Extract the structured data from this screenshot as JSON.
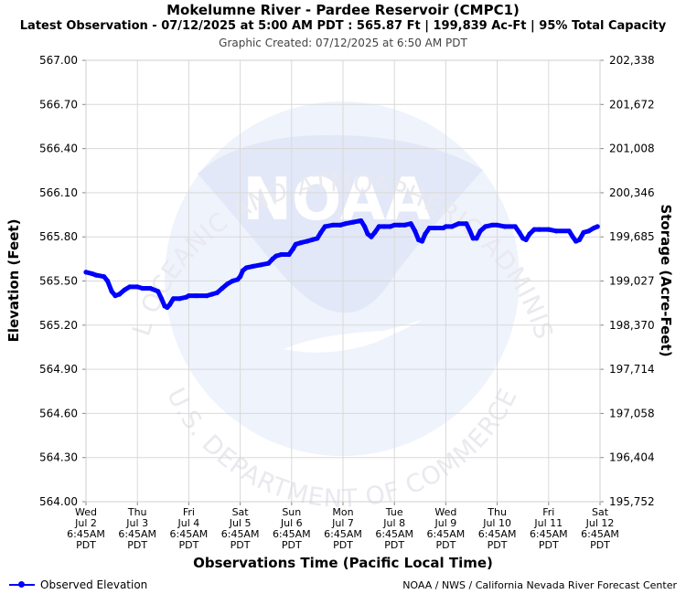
{
  "header": {
    "title": "Mokelumne River - Pardee Reservoir (CMPC1)",
    "subtitle": "Latest Observation - 07/12/2025 at 5:00 AM PDT : 565.87 Ft | 199,839 Ac-Ft | 95% Total Capacity",
    "created": "Graphic Created: 07/12/2025 at 6:50 AM PDT"
  },
  "footer": {
    "legend_label": "Observed Elevation",
    "credit": "NOAA / NWS / California Nevada River Forecast Center"
  },
  "watermark": {
    "logo_text": "NOAA",
    "ring_top": "NATIONAL OCEANIC AND ATMOSPHERIC ADMINISTRATION",
    "ring_bottom": "U.S. DEPARTMENT OF COMMERCE"
  },
  "colors": {
    "series": "#0000ff",
    "grid": "#d9d9d9",
    "watermark_light": "#eef3fc",
    "watermark_dark": "#e3e8f8"
  },
  "chart_data": {
    "type": "line",
    "xlabel": "Observations Time (Pacific Local Time)",
    "ylabel": "Elevation (Feet)",
    "y2label": "Storage (Acre-Feet)",
    "ylim": [
      564.0,
      567.0
    ],
    "y_ticks": [
      "567.00",
      "566.70",
      "566.40",
      "566.10",
      "565.80",
      "565.50",
      "565.20",
      "564.90",
      "564.60",
      "564.30",
      "564.00"
    ],
    "y2_ticks": [
      "202,338",
      "201,672",
      "201,008",
      "200,346",
      "199,685",
      "199,027",
      "198,370",
      "197,714",
      "197,058",
      "196,404",
      "195,752"
    ],
    "x_range_days": [
      0,
      10
    ],
    "x_ticks": [
      [
        "Wed",
        "Jul 2",
        "6:45AM",
        "PDT"
      ],
      [
        "Thu",
        "Jul 3",
        "6:45AM",
        "PDT"
      ],
      [
        "Fri",
        "Jul 4",
        "6:45AM",
        "PDT"
      ],
      [
        "Sat",
        "Jul 5",
        "6:45AM",
        "PDT"
      ],
      [
        "Sun",
        "Jul 6",
        "6:45AM",
        "PDT"
      ],
      [
        "Mon",
        "Jul 7",
        "6:45AM",
        "PDT"
      ],
      [
        "Tue",
        "Jul 8",
        "6:45AM",
        "PDT"
      ],
      [
        "Wed",
        "Jul 9",
        "6:45AM",
        "PDT"
      ],
      [
        "Thu",
        "Jul 10",
        "6:45AM",
        "PDT"
      ],
      [
        "Fri",
        "Jul 11",
        "6:45AM",
        "PDT"
      ],
      [
        "Sat",
        "Jul 12",
        "6:45AM",
        "PDT"
      ]
    ],
    "grid": true,
    "legend": "bottom-left",
    "series": [
      {
        "name": "Observed Elevation",
        "points": [
          [
            0.0,
            565.56
          ],
          [
            0.12,
            565.55
          ],
          [
            0.2,
            565.54
          ],
          [
            0.35,
            565.53
          ],
          [
            0.42,
            565.5
          ],
          [
            0.5,
            565.43
          ],
          [
            0.57,
            565.4
          ],
          [
            0.65,
            565.41
          ],
          [
            0.75,
            565.44
          ],
          [
            0.85,
            565.46
          ],
          [
            1.0,
            565.46
          ],
          [
            1.1,
            565.45
          ],
          [
            1.25,
            565.45
          ],
          [
            1.4,
            565.43
          ],
          [
            1.47,
            565.38
          ],
          [
            1.53,
            565.33
          ],
          [
            1.58,
            565.32
          ],
          [
            1.63,
            565.34
          ],
          [
            1.7,
            565.38
          ],
          [
            1.82,
            565.38
          ],
          [
            1.95,
            565.39
          ],
          [
            2.0,
            565.4
          ],
          [
            2.15,
            565.4
          ],
          [
            2.35,
            565.4
          ],
          [
            2.45,
            565.41
          ],
          [
            2.55,
            565.42
          ],
          [
            2.65,
            565.45
          ],
          [
            2.75,
            565.48
          ],
          [
            2.85,
            565.5
          ],
          [
            2.95,
            565.51
          ],
          [
            3.0,
            565.53
          ],
          [
            3.05,
            565.57
          ],
          [
            3.12,
            565.59
          ],
          [
            3.25,
            565.6
          ],
          [
            3.4,
            565.61
          ],
          [
            3.55,
            565.62
          ],
          [
            3.63,
            565.65
          ],
          [
            3.7,
            565.67
          ],
          [
            3.8,
            565.68
          ],
          [
            3.95,
            565.68
          ],
          [
            4.03,
            565.72
          ],
          [
            4.08,
            565.75
          ],
          [
            4.18,
            565.76
          ],
          [
            4.3,
            565.77
          ],
          [
            4.4,
            565.78
          ],
          [
            4.5,
            565.79
          ],
          [
            4.57,
            565.83
          ],
          [
            4.65,
            565.87
          ],
          [
            4.8,
            565.88
          ],
          [
            4.95,
            565.88
          ],
          [
            5.05,
            565.89
          ],
          [
            5.2,
            565.9
          ],
          [
            5.35,
            565.91
          ],
          [
            5.42,
            565.87
          ],
          [
            5.48,
            565.82
          ],
          [
            5.55,
            565.8
          ],
          [
            5.62,
            565.83
          ],
          [
            5.7,
            565.87
          ],
          [
            5.8,
            565.87
          ],
          [
            5.92,
            565.87
          ],
          [
            6.0,
            565.88
          ],
          [
            6.1,
            565.88
          ],
          [
            6.2,
            565.88
          ],
          [
            6.32,
            565.89
          ],
          [
            6.4,
            565.84
          ],
          [
            6.47,
            565.78
          ],
          [
            6.54,
            565.77
          ],
          [
            6.6,
            565.82
          ],
          [
            6.68,
            565.86
          ],
          [
            6.8,
            565.86
          ],
          [
            6.95,
            565.86
          ],
          [
            7.0,
            565.87
          ],
          [
            7.12,
            565.87
          ],
          [
            7.25,
            565.89
          ],
          [
            7.4,
            565.89
          ],
          [
            7.47,
            565.84
          ],
          [
            7.53,
            565.79
          ],
          [
            7.6,
            565.79
          ],
          [
            7.67,
            565.84
          ],
          [
            7.77,
            565.87
          ],
          [
            7.9,
            565.88
          ],
          [
            8.0,
            565.88
          ],
          [
            8.15,
            565.87
          ],
          [
            8.35,
            565.87
          ],
          [
            8.43,
            565.83
          ],
          [
            8.5,
            565.79
          ],
          [
            8.56,
            565.78
          ],
          [
            8.63,
            565.82
          ],
          [
            8.72,
            565.85
          ],
          [
            8.82,
            565.85
          ],
          [
            9.0,
            565.85
          ],
          [
            9.15,
            565.84
          ],
          [
            9.4,
            565.84
          ],
          [
            9.47,
            565.8
          ],
          [
            9.53,
            565.77
          ],
          [
            9.6,
            565.78
          ],
          [
            9.68,
            565.83
          ],
          [
            9.78,
            565.84
          ],
          [
            9.88,
            565.86
          ],
          [
            9.95,
            565.87
          ]
        ]
      }
    ]
  }
}
